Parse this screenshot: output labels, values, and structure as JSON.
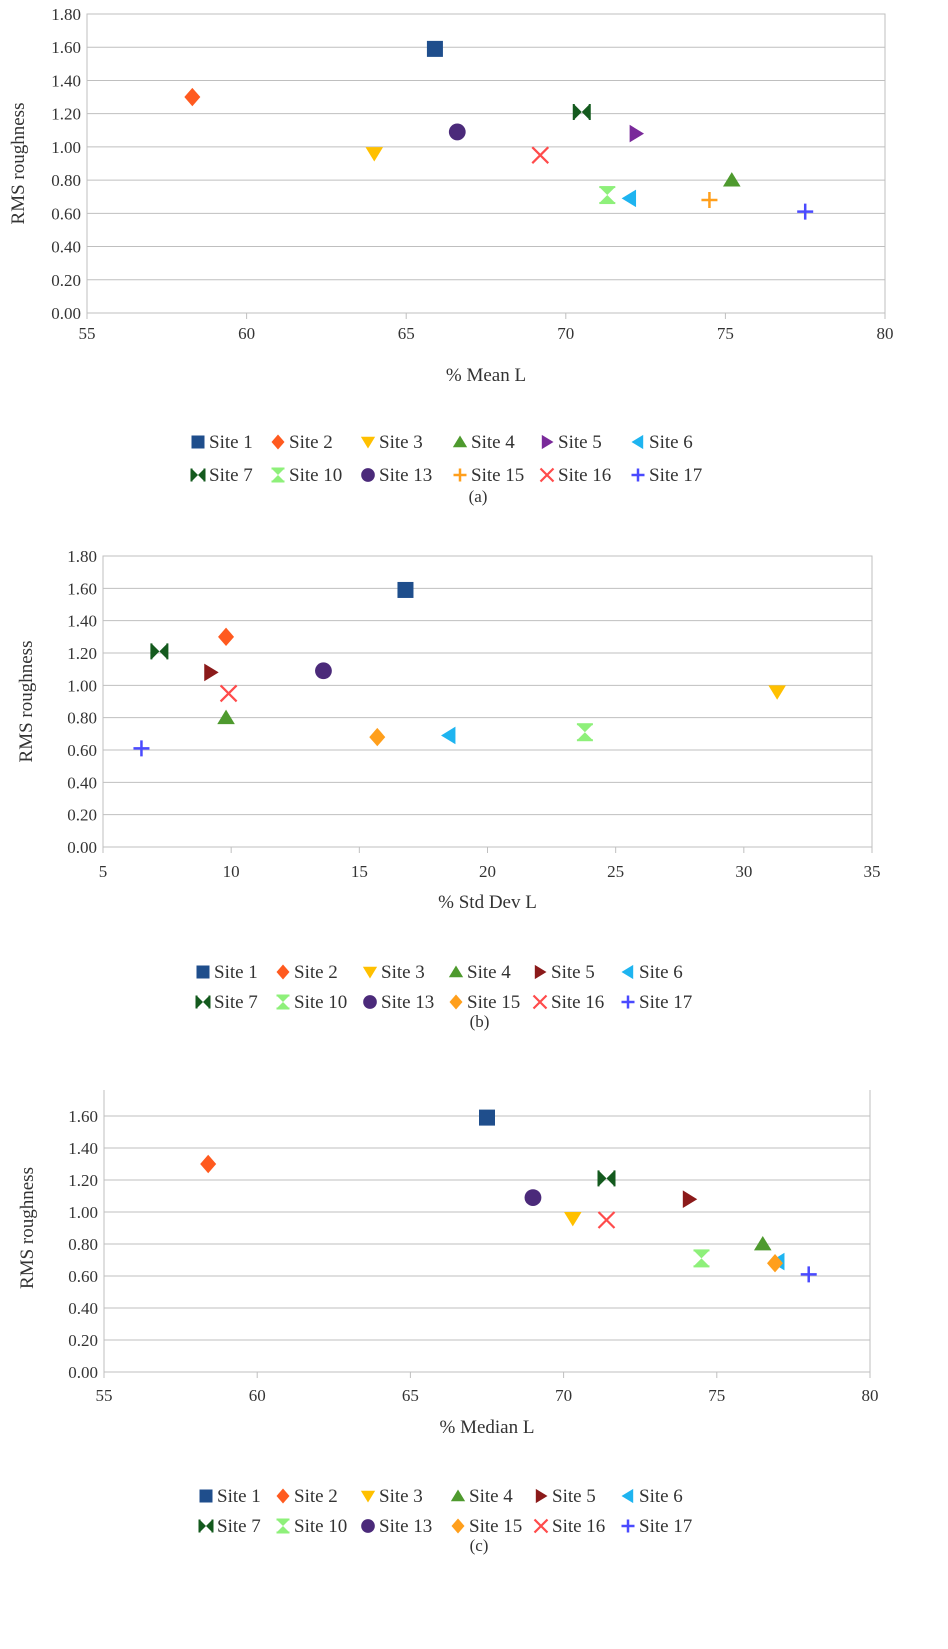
{
  "series_styles": [
    {
      "name": "Site 1",
      "color": "#1f4e8c",
      "marker": "square"
    },
    {
      "name": "Site 2",
      "color": "#ff5a1f",
      "marker": "diamond"
    },
    {
      "name": "Site 3",
      "color": "#ffc000",
      "marker": "triangle-down"
    },
    {
      "name": "Site 4",
      "color": "#4e9a2e",
      "marker": "triangle-up"
    },
    {
      "name": "Site 5",
      "color": "#8b1a1a",
      "marker": "triangle-right"
    },
    {
      "name": "Site 6",
      "color": "#1eb4f0",
      "marker": "triangle-left"
    },
    {
      "name": "Site 7",
      "color": "#145a1e",
      "marker": "bowtie"
    },
    {
      "name": "Site 10",
      "color": "#8ef07a",
      "marker": "hourglass"
    },
    {
      "name": "Site 13",
      "color": "#4b2a7a",
      "marker": "circle"
    },
    {
      "name": "Site 15",
      "color": "#ff9f1c",
      "marker": "plus"
    },
    {
      "name": "Site 16",
      "color": "#ff4b4b",
      "marker": "x"
    },
    {
      "name": "Site 17",
      "color": "#4a4aff",
      "marker": "plus"
    }
  ],
  "chart_data": [
    {
      "type": "scatter",
      "panel_label": "(a)",
      "xlabel": "% Mean L",
      "ylabel": "RMS roughness",
      "xlim": [
        55,
        80
      ],
      "ylim": [
        0,
        1.8
      ],
      "x_ticks": [
        "55",
        "60",
        "65",
        "70",
        "75",
        "80"
      ],
      "y_ticks": [
        "0.00",
        "0.20",
        "0.40",
        "0.60",
        "0.80",
        "1.00",
        "1.20",
        "1.40",
        "1.60",
        "1.80"
      ],
      "grid": "horizontal",
      "legend": "bottom",
      "series": [
        {
          "name": "Site 1",
          "x": [
            65.9
          ],
          "y": [
            1.59
          ]
        },
        {
          "name": "Site 2",
          "x": [
            58.3
          ],
          "y": [
            1.3
          ]
        },
        {
          "name": "Site 3",
          "x": [
            64.0
          ],
          "y": [
            0.96
          ]
        },
        {
          "name": "Site 4",
          "x": [
            75.2
          ],
          "y": [
            0.8
          ]
        },
        {
          "name": "Site 5",
          "x": [
            72.2
          ],
          "y": [
            1.08
          ],
          "color": "#7a2a9a"
        },
        {
          "name": "Site 6",
          "x": [
            72.0
          ],
          "y": [
            0.69
          ]
        },
        {
          "name": "Site 7",
          "x": [
            70.5
          ],
          "y": [
            1.21
          ]
        },
        {
          "name": "Site 10",
          "x": [
            71.3
          ],
          "y": [
            0.71
          ]
        },
        {
          "name": "Site 13",
          "x": [
            66.6
          ],
          "y": [
            1.09
          ]
        },
        {
          "name": "Site 15",
          "x": [
            74.5
          ],
          "y": [
            0.68
          ]
        },
        {
          "name": "Site 16",
          "x": [
            69.2
          ],
          "y": [
            0.95
          ]
        },
        {
          "name": "Site 17",
          "x": [
            77.5
          ],
          "y": [
            0.61
          ]
        }
      ]
    },
    {
      "type": "scatter",
      "panel_label": "(b)",
      "xlabel": "% Std Dev L",
      "ylabel": "RMS roughness",
      "xlim": [
        5,
        35
      ],
      "ylim": [
        0,
        1.8
      ],
      "x_ticks": [
        "5",
        "10",
        "15",
        "20",
        "25",
        "30",
        "35"
      ],
      "y_ticks": [
        "0.00",
        "0.20",
        "0.40",
        "0.60",
        "0.80",
        "1.00",
        "1.20",
        "1.40",
        "1.60",
        "1.80"
      ],
      "grid": "horizontal",
      "legend": "bottom",
      "series": [
        {
          "name": "Site 1",
          "x": [
            16.8
          ],
          "y": [
            1.59
          ]
        },
        {
          "name": "Site 2",
          "x": [
            9.8
          ],
          "y": [
            1.3
          ]
        },
        {
          "name": "Site 3",
          "x": [
            31.3
          ],
          "y": [
            0.96
          ]
        },
        {
          "name": "Site 4",
          "x": [
            9.8
          ],
          "y": [
            0.8
          ]
        },
        {
          "name": "Site 5",
          "x": [
            9.2
          ],
          "y": [
            1.08
          ]
        },
        {
          "name": "Site 6",
          "x": [
            18.5
          ],
          "y": [
            0.69
          ]
        },
        {
          "name": "Site 7",
          "x": [
            7.2
          ],
          "y": [
            1.21
          ]
        },
        {
          "name": "Site 10",
          "x": [
            23.8
          ],
          "y": [
            0.71
          ]
        },
        {
          "name": "Site 13",
          "x": [
            13.6
          ],
          "y": [
            1.09
          ]
        },
        {
          "name": "Site 15",
          "x": [
            15.7
          ],
          "y": [
            0.68
          ],
          "marker": "diamond"
        },
        {
          "name": "Site 16",
          "x": [
            9.9
          ],
          "y": [
            0.95
          ]
        },
        {
          "name": "Site 17",
          "x": [
            6.5
          ],
          "y": [
            0.61
          ]
        }
      ]
    },
    {
      "type": "scatter",
      "panel_label": "(c)",
      "xlabel": "% Median L",
      "ylabel": "RMS roughness",
      "xlim": [
        55,
        80
      ],
      "ylim": [
        0,
        1.8
      ],
      "x_ticks": [
        "55",
        "60",
        "65",
        "70",
        "75",
        "80"
      ],
      "y_ticks": [
        "0.00",
        "0.20",
        "0.40",
        "0.60",
        "0.80",
        "1.00",
        "1.20",
        "1.40",
        "1.60",
        "1.80"
      ],
      "grid": "horizontal",
      "legend": "bottom",
      "series": [
        {
          "name": "Site 1",
          "x": [
            67.5
          ],
          "y": [
            1.59
          ]
        },
        {
          "name": "Site 2",
          "x": [
            58.4
          ],
          "y": [
            1.3
          ]
        },
        {
          "name": "Site 3",
          "x": [
            70.3
          ],
          "y": [
            0.96
          ]
        },
        {
          "name": "Site 4",
          "x": [
            76.5
          ],
          "y": [
            0.8
          ]
        },
        {
          "name": "Site 5",
          "x": [
            74.1
          ],
          "y": [
            1.08
          ]
        },
        {
          "name": "Site 6",
          "x": [
            77.0
          ],
          "y": [
            0.69
          ]
        },
        {
          "name": "Site 7",
          "x": [
            71.4
          ],
          "y": [
            1.21
          ]
        },
        {
          "name": "Site 10",
          "x": [
            74.5
          ],
          "y": [
            0.71
          ]
        },
        {
          "name": "Site 13",
          "x": [
            69.0
          ],
          "y": [
            1.09
          ]
        },
        {
          "name": "Site 15",
          "x": [
            76.9
          ],
          "y": [
            0.68
          ],
          "marker": "diamond"
        },
        {
          "name": "Site 16",
          "x": [
            71.4
          ],
          "y": [
            0.95
          ]
        },
        {
          "name": "Site 17",
          "x": [
            78.0
          ],
          "y": [
            0.61
          ]
        }
      ]
    }
  ]
}
